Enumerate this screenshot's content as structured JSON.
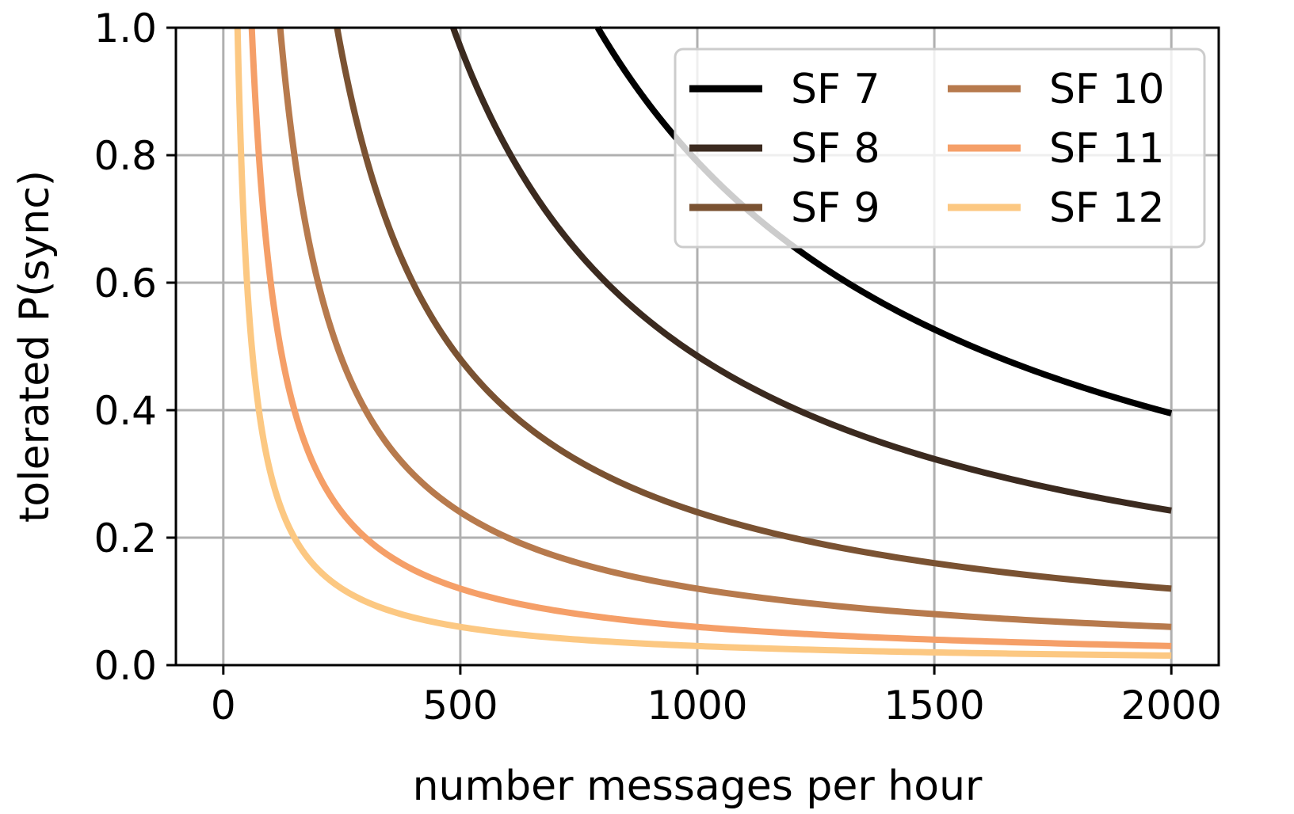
{
  "chart_data": {
    "type": "line",
    "title": "",
    "xlabel": "number messages per hour",
    "ylabel": "tolerated P(sync)",
    "xlim": [
      -100,
      2100
    ],
    "ylim": [
      0.0,
      1.0
    ],
    "xticks": [
      0,
      500,
      1000,
      1500,
      2000
    ],
    "xtick_labels": [
      "0",
      "500",
      "1000",
      "1500",
      "2000"
    ],
    "yticks": [
      0.0,
      0.2,
      0.4,
      0.6,
      0.8,
      1.0
    ],
    "ytick_labels": [
      "0.0",
      "0.2",
      "0.4",
      "0.6",
      "0.8",
      "1.0"
    ],
    "grid": true,
    "legend": {
      "position": "top-right",
      "columns": 2
    },
    "x_range": [
      0,
      2000
    ],
    "series": [
      {
        "name": "SF 7",
        "color": "#000000",
        "x_start": 790,
        "x": [
          790,
          1000,
          1500,
          2000
        ],
        "y": [
          1.0,
          0.79,
          0.53,
          0.395
        ]
      },
      {
        "name": "SF 8",
        "color": "#3b2a1f",
        "x_start": 485,
        "x": [
          485,
          1000,
          1500,
          2000
        ],
        "y": [
          1.0,
          0.48,
          0.32,
          0.24
        ]
      },
      {
        "name": "SF 9",
        "color": "#7a5232",
        "x_start": 240,
        "x": [
          240,
          1000,
          1500,
          2000
        ],
        "y": [
          1.0,
          0.24,
          0.16,
          0.12
        ]
      },
      {
        "name": "SF 10",
        "color": "#b77a4d",
        "x_start": 120,
        "x": [
          120,
          1000,
          1500,
          2000
        ],
        "y": [
          1.0,
          0.12,
          0.08,
          0.06
        ]
      },
      {
        "name": "SF 11",
        "color": "#f59f68",
        "x_start": 60,
        "x": [
          60,
          1000,
          1500,
          2000
        ],
        "y": [
          1.0,
          0.06,
          0.04,
          0.03
        ]
      },
      {
        "name": "SF 12",
        "color": "#fcc882",
        "x_start": 30,
        "x": [
          30,
          1000,
          1500,
          2000
        ],
        "y": [
          1.0,
          0.03,
          0.02,
          0.015
        ]
      }
    ]
  }
}
